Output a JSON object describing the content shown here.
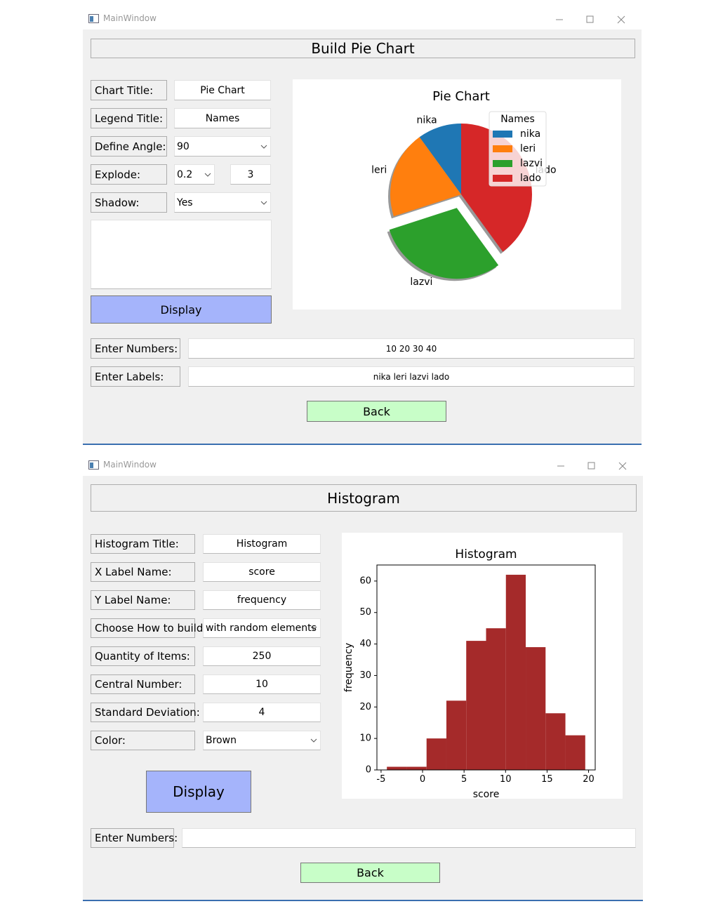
{
  "windows": [
    {
      "title": "MainWindow",
      "heading": "Build Pie Chart",
      "fields": [
        {
          "label": "Chart Title:",
          "value": "Pie Chart"
        },
        {
          "label": "Legend Title:",
          "value": "Names"
        },
        {
          "label": "Define Angle:",
          "value": "90"
        },
        {
          "label": "Explode:",
          "value": "0.2",
          "value2": "3"
        },
        {
          "label": "Shadow:",
          "value": "Yes"
        }
      ],
      "display": "Display",
      "rows": [
        {
          "label": "Enter Numbers:",
          "value": "10 20 30 40"
        },
        {
          "label": "Enter Labels:",
          "value": "nika leri lazvi lado"
        }
      ],
      "back": "Back"
    },
    {
      "title": "MainWindow",
      "heading": "Histogram",
      "fields": [
        {
          "label": "Histogram Title:",
          "value": "Histogram"
        },
        {
          "label": "X Label Name:",
          "value": "score"
        },
        {
          "label": "Y Label Name:",
          "value": "frequency"
        },
        {
          "label": "Choose How to build:",
          "value": "with random elements"
        },
        {
          "label": "Quantity of Items:",
          "value": "250"
        },
        {
          "label": "Central Number:",
          "value": "10"
        },
        {
          "label": "Standard Deviation:",
          "value": "4"
        },
        {
          "label": "Color:",
          "value": "Brown"
        }
      ],
      "display": "Display",
      "rows": [
        {
          "label": "Enter Numbers:"
        }
      ],
      "back": "Back"
    }
  ],
  "chart_data": [
    {
      "type": "pie",
      "title": "Pie Chart",
      "categories": [
        "nika",
        "leri",
        "lazvi",
        "lado"
      ],
      "values": [
        10,
        20,
        30,
        40
      ],
      "colors": [
        "#1f77b4",
        "#ff7f0e",
        "#2ca02c",
        "#d62728"
      ],
      "start_angle": 90,
      "explode": [
        0,
        0,
        0.2,
        0
      ],
      "shadow": true,
      "legend_title": "Names",
      "legend": "upper right"
    },
    {
      "type": "histogram",
      "title": "Histogram",
      "xlabel": "score",
      "ylabel": "frequency",
      "bins": [
        -4.3,
        -1.91,
        0.48,
        2.87,
        5.26,
        7.65,
        10.04,
        12.43,
        14.82,
        17.21,
        19.6
      ],
      "values": [
        1,
        1,
        10,
        22,
        41,
        45,
        62,
        39,
        18,
        11
      ],
      "color": "#a52a2a",
      "xlim": [
        -5.5,
        20.8
      ],
      "ylim": [
        0,
        65.1
      ],
      "xticks": [
        -5,
        0,
        5,
        10,
        15,
        20
      ],
      "yticks": [
        0,
        10,
        20,
        30,
        40,
        50,
        60
      ]
    }
  ]
}
